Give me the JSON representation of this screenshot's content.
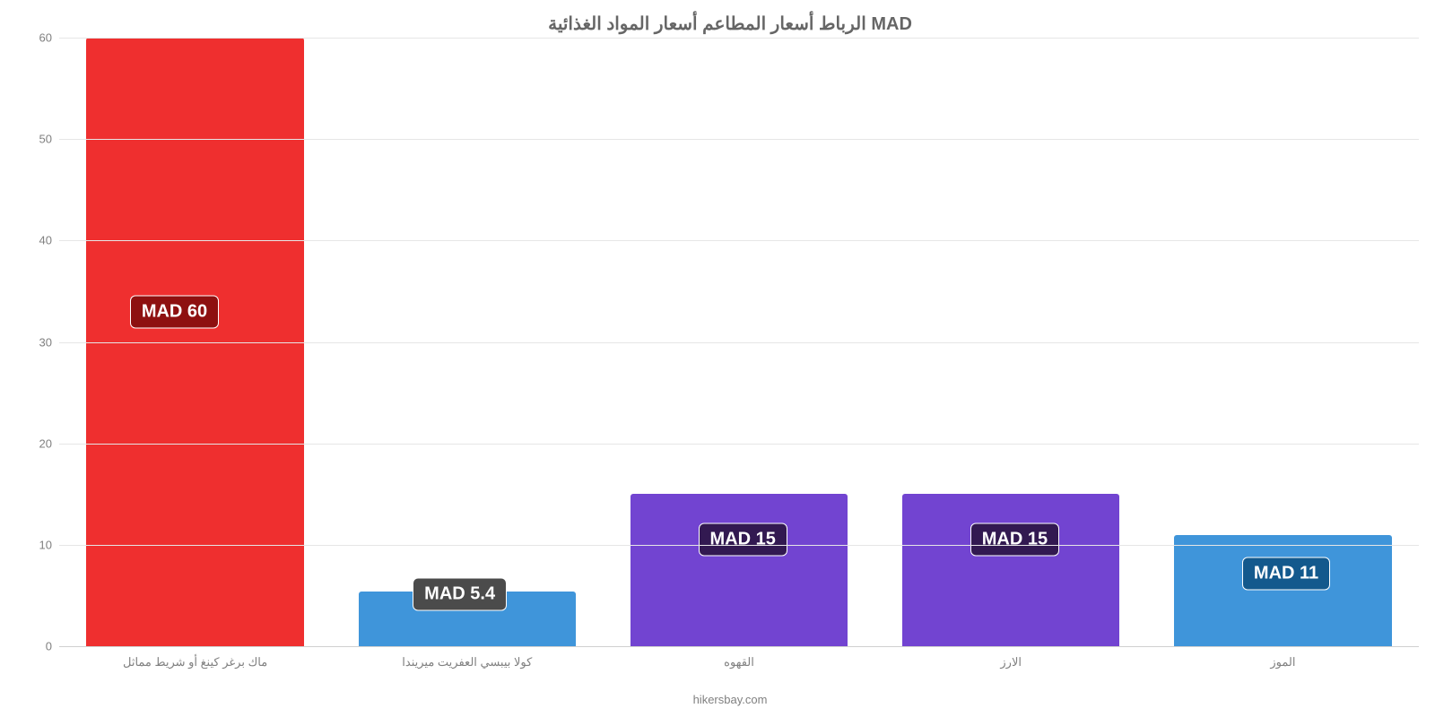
{
  "chart": {
    "type": "bar",
    "title": "الرباط أسعار المطاعم أسعار المواد الغذائية MAD",
    "title_fontsize": 20,
    "title_color": "#666666",
    "background_color": "#ffffff",
    "grid_color": "#e6e6e6",
    "axis_color": "#d0d0d0",
    "label_color": "#808080",
    "label_fontsize": 13,
    "ylim": [
      0,
      60
    ],
    "ytick_step": 10,
    "yticks": [
      0,
      10,
      20,
      30,
      40,
      50,
      60
    ],
    "bar_width": 0.8,
    "categories": [
      "ماك برغر كينغ أو شريط مماثل",
      "كولا بيبسي العفريت ميريندا",
      "القهوه",
      "الارز",
      "الموز"
    ],
    "values": [
      60,
      5.4,
      15,
      15,
      11
    ],
    "value_labels": [
      "MAD 60",
      "MAD 5.4",
      "MAD 15",
      "MAD 15",
      "MAD 11"
    ],
    "value_label_fontsize": 20,
    "bar_colors": [
      "#ef2f2f",
      "#3f95da",
      "#7244d1",
      "#7244d1",
      "#3f95da"
    ],
    "badge_bg_colors": [
      "#8e1010",
      "#4b4b4b",
      "#321951",
      "#321951",
      "#13598d"
    ],
    "badge_top_pct": [
      45,
      91.5,
      82.5,
      82.5,
      88
    ],
    "badge_left_pct": [
      26,
      30,
      35,
      35,
      35
    ],
    "source": "hikersbay.com"
  }
}
